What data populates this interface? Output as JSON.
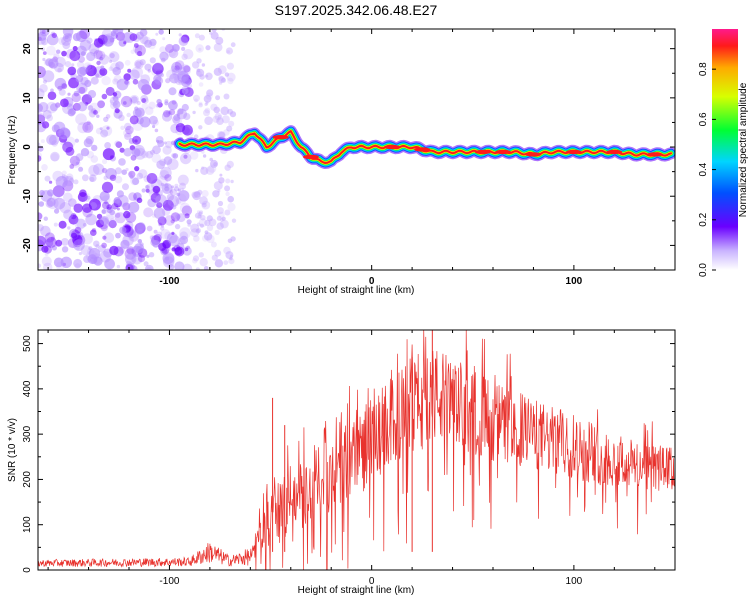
{
  "title": "S197.2025.342.06.48.E27",
  "colors": {
    "signal": "#e8322d",
    "axis": "#000000",
    "speckle": "#8a2be2",
    "track": "#ff1a1a"
  },
  "colorbar": {
    "label": "Normalized spectral amplitude",
    "ticks": [
      "0.0",
      "0.2",
      "0.4",
      "0.6",
      "0.8"
    ],
    "range": [
      0,
      0.96
    ]
  },
  "chart_data": [
    {
      "type": "heatmap",
      "title": "S197.2025.342.06.48.E27",
      "xlabel": "Height of straight line (km)",
      "ylabel": "Frequency (Hz)",
      "xlim": [
        -165,
        150
      ],
      "ylim": [
        -25,
        24
      ],
      "xticks": [
        -100,
        0,
        100
      ],
      "yticks": [
        -20,
        -10,
        0,
        10,
        20
      ],
      "ridge": {
        "x": [
          -95,
          -85,
          -75,
          -65,
          -58,
          -52,
          -45,
          -40,
          -35,
          -30,
          -25,
          -20,
          -15,
          -10,
          0,
          10,
          20,
          30,
          40,
          50,
          60,
          70,
          80,
          90,
          100,
          110,
          120,
          130,
          140,
          148
        ],
        "y": [
          0.5,
          0.5,
          0.5,
          1,
          3,
          0,
          2,
          3,
          0,
          -2,
          -3,
          -3,
          -1,
          0,
          0,
          0,
          0,
          -1,
          -1,
          -1,
          -1,
          -1,
          -1.5,
          -1,
          -1,
          -1,
          -1,
          -1.5,
          -1.5,
          -1.5
        ]
      }
    },
    {
      "type": "line",
      "xlabel": "Height of straight line (km)",
      "ylabel": "SNR (10 * v/v)",
      "xlim": [
        -165,
        150
      ],
      "ylim": [
        0,
        530
      ],
      "xticks": [
        -100,
        0,
        100
      ],
      "yticks": [
        0,
        100,
        200,
        300,
        400,
        500
      ],
      "envelope": {
        "x": [
          -165,
          -90,
          -80,
          -70,
          -60,
          -55,
          -50,
          -45,
          -40,
          -30,
          -20,
          -10,
          0,
          10,
          20,
          30,
          40,
          60,
          80,
          100,
          120,
          150
        ],
        "mean": [
          15,
          18,
          40,
          20,
          30,
          80,
          110,
          130,
          150,
          180,
          210,
          250,
          280,
          330,
          360,
          390,
          370,
          330,
          300,
          270,
          240,
          220
        ],
        "amp": [
          8,
          10,
          25,
          12,
          20,
          40,
          60,
          70,
          70,
          80,
          80,
          90,
          100,
          100,
          110,
          110,
          100,
          90,
          80,
          70,
          60,
          50
        ]
      },
      "spikes": [
        {
          "x": -49,
          "y": 380
        },
        {
          "x": -43,
          "y": 320
        },
        {
          "x": 20,
          "y": 470
        },
        {
          "x": 30,
          "y": 530
        }
      ]
    }
  ]
}
